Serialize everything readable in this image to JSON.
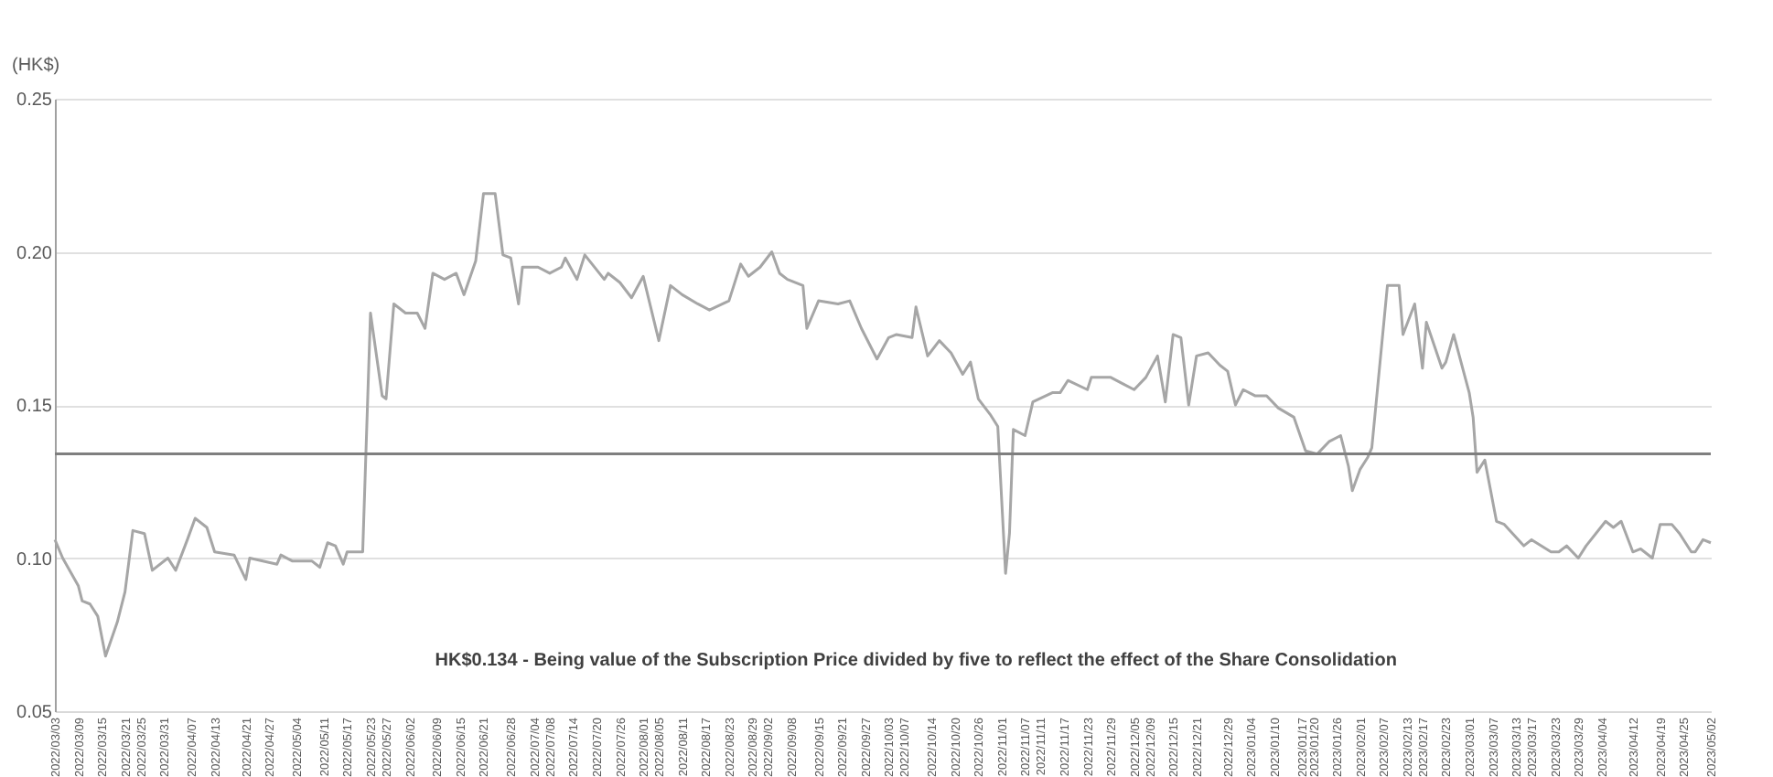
{
  "chart_data": {
    "type": "line",
    "ylabel": "(HK$)",
    "x": [
      "2022-03-03",
      "2022-03-05",
      "2022-03-09",
      "2022-03-10",
      "2022-03-12",
      "2022-03-14",
      "2022-03-16",
      "2022-03-19",
      "2022-03-21",
      "2022-03-23",
      "2022-03-26",
      "2022-03-28",
      "2022-04-01",
      "2022-04-03",
      "2022-04-06",
      "2022-04-08",
      "2022-04-11",
      "2022-04-13",
      "2022-04-18",
      "2022-04-21",
      "2022-04-22",
      "2022-04-29",
      "2022-04-30",
      "2022-05-03",
      "2022-05-08",
      "2022-05-10",
      "2022-05-12",
      "2022-05-14",
      "2022-05-16",
      "2022-05-17",
      "2022-05-21",
      "2022-05-23",
      "2022-05-26",
      "2022-05-27",
      "2022-05-29",
      "2022-06-01",
      "2022-06-04",
      "2022-06-06",
      "2022-06-08",
      "2022-06-11",
      "2022-06-14",
      "2022-06-16",
      "2022-06-19",
      "2022-06-21",
      "2022-06-24",
      "2022-06-26",
      "2022-06-28",
      "2022-06-30",
      "2022-07-01",
      "2022-07-05",
      "2022-07-08",
      "2022-07-11",
      "2022-07-12",
      "2022-07-15",
      "2022-07-17",
      "2022-07-22",
      "2022-07-23",
      "2022-07-26",
      "2022-07-29",
      "2022-08-01",
      "2022-08-05",
      "2022-08-08",
      "2022-08-11",
      "2022-08-15",
      "2022-08-18",
      "2022-08-23",
      "2022-08-26",
      "2022-08-28",
      "2022-08-31",
      "2022-09-03",
      "2022-09-05",
      "2022-09-07",
      "2022-09-11",
      "2022-09-12",
      "2022-09-15",
      "2022-09-20",
      "2022-09-23",
      "2022-09-26",
      "2022-09-30",
      "2022-10-03",
      "2022-10-05",
      "2022-10-09",
      "2022-10-10",
      "2022-10-13",
      "2022-10-16",
      "2022-10-19",
      "2022-10-22",
      "2022-10-24",
      "2022-10-26",
      "2022-10-29",
      "2022-10-31",
      "2022-11-02",
      "2022-11-03",
      "2022-11-04",
      "2022-11-07",
      "2022-11-09",
      "2022-11-14",
      "2022-11-16",
      "2022-11-18",
      "2022-11-23",
      "2022-11-24",
      "2022-11-29",
      "2022-12-02",
      "2022-12-05",
      "2022-12-08",
      "2022-12-11",
      "2022-12-13",
      "2022-12-15",
      "2022-12-17",
      "2022-12-19",
      "2022-12-21",
      "2022-12-24",
      "2022-12-27",
      "2022-12-29",
      "2022-12-31",
      "2023-01-02",
      "2023-01-05",
      "2023-01-08",
      "2023-01-11",
      "2023-01-15",
      "2023-01-18",
      "2023-01-21",
      "2023-01-24",
      "2023-01-27",
      "2023-01-29",
      "2023-01-30",
      "2023-02-01",
      "2023-02-03",
      "2023-02-04",
      "2023-02-08",
      "2023-02-11",
      "2023-02-12",
      "2023-02-15",
      "2023-02-17",
      "2023-02-18",
      "2023-02-22",
      "2023-02-23",
      "2023-02-25",
      "2023-03-01",
      "2023-03-02",
      "2023-03-03",
      "2023-03-05",
      "2023-03-08",
      "2023-03-10",
      "2023-03-15",
      "2023-03-17",
      "2023-03-22",
      "2023-03-24",
      "2023-03-26",
      "2023-03-29",
      "2023-03-31",
      "2023-04-05",
      "2023-04-07",
      "2023-04-09",
      "2023-04-12",
      "2023-04-14",
      "2023-04-17",
      "2023-04-19",
      "2023-04-22",
      "2023-04-24",
      "2023-04-27",
      "2023-04-28",
      "2023-04-30",
      "2023-05-02"
    ],
    "series": [
      {
        "color": "#a6a6a6",
        "values": [
          0.106,
          0.1,
          0.091,
          0.086,
          0.085,
          0.081,
          0.068,
          0.079,
          0.089,
          0.109,
          0.108,
          0.096,
          0.1,
          0.096,
          0.106,
          0.113,
          0.11,
          0.102,
          0.101,
          0.093,
          0.1,
          0.098,
          0.101,
          0.099,
          0.099,
          0.097,
          0.105,
          0.104,
          0.098,
          0.102,
          0.102,
          0.18,
          0.153,
          0.152,
          0.183,
          0.18,
          0.18,
          0.175,
          0.193,
          0.191,
          0.193,
          0.186,
          0.197,
          0.219,
          0.219,
          0.199,
          0.198,
          0.183,
          0.195,
          0.195,
          0.193,
          0.195,
          0.198,
          0.191,
          0.199,
          0.191,
          0.193,
          0.19,
          0.185,
          0.192,
          0.171,
          0.189,
          0.186,
          0.183,
          0.181,
          0.184,
          0.196,
          0.192,
          0.195,
          0.2,
          0.193,
          0.191,
          0.189,
          0.175,
          0.184,
          0.183,
          0.184,
          0.175,
          0.165,
          0.172,
          0.173,
          0.172,
          0.182,
          0.166,
          0.171,
          0.167,
          0.16,
          0.164,
          0.152,
          0.147,
          0.143,
          0.095,
          0.108,
          0.142,
          0.14,
          0.151,
          0.154,
          0.154,
          0.158,
          0.155,
          0.159,
          0.159,
          0.157,
          0.155,
          0.159,
          0.166,
          0.151,
          0.173,
          0.172,
          0.15,
          0.166,
          0.167,
          0.163,
          0.161,
          0.15,
          0.155,
          0.153,
          0.153,
          0.149,
          0.146,
          0.135,
          0.134,
          0.138,
          0.14,
          0.13,
          0.122,
          0.129,
          0.133,
          0.136,
          0.189,
          0.189,
          0.173,
          0.183,
          0.162,
          0.177,
          0.162,
          0.164,
          0.173,
          0.154,
          0.146,
          0.128,
          0.132,
          0.112,
          0.111,
          0.104,
          0.106,
          0.102,
          0.102,
          0.104,
          0.1,
          0.104,
          0.112,
          0.11,
          0.112,
          0.102,
          0.103,
          0.1,
          0.111,
          0.111,
          0.108,
          0.102,
          0.102,
          0.106,
          0.105
        ]
      }
    ],
    "xlim": [
      "2022-03-03",
      "2023-05-02"
    ],
    "xticks": [
      {
        "value": "2022-03-03",
        "label": "2022/03/03"
      },
      {
        "value": "2022-03-09",
        "label": "2022/03/09"
      },
      {
        "value": "2022-03-15",
        "label": "2022/03/15"
      },
      {
        "value": "2022-03-21",
        "label": "2022/03/21"
      },
      {
        "value": "2022-03-25",
        "label": "2022/03/25"
      },
      {
        "value": "2022-03-31",
        "label": "2022/03/31"
      },
      {
        "value": "2022-04-07",
        "label": "2022/04/07"
      },
      {
        "value": "2022-04-13",
        "label": "2022/04/13"
      },
      {
        "value": "2022-04-21",
        "label": "2022/04/21"
      },
      {
        "value": "2022-04-27",
        "label": "2022/04/27"
      },
      {
        "value": "2022-05-04",
        "label": "2022/05/04"
      },
      {
        "value": "2022-05-11",
        "label": "2022/05/11"
      },
      {
        "value": "2022-05-17",
        "label": "2022/05/17"
      },
      {
        "value": "2022-05-23",
        "label": "2022/05/23"
      },
      {
        "value": "2022-05-27",
        "label": "2022/05/27"
      },
      {
        "value": "2022-06-02",
        "label": "2022/06/02"
      },
      {
        "value": "2022-06-09",
        "label": "2022/06/09"
      },
      {
        "value": "2022-06-15",
        "label": "2022/06/15"
      },
      {
        "value": "2022-06-21",
        "label": "2022/06/21"
      },
      {
        "value": "2022-06-28",
        "label": "2022/06/28"
      },
      {
        "value": "2022-07-04",
        "label": "2022/07/04"
      },
      {
        "value": "2022-07-08",
        "label": "2022/07/08"
      },
      {
        "value": "2022-07-14",
        "label": "2022/07/14"
      },
      {
        "value": "2022-07-20",
        "label": "2022/07/20"
      },
      {
        "value": "2022-07-26",
        "label": "2022/07/26"
      },
      {
        "value": "2022-08-01",
        "label": "2022/08/01"
      },
      {
        "value": "2022-08-05",
        "label": "2022/08/05"
      },
      {
        "value": "2022-08-11",
        "label": "2022/08/11"
      },
      {
        "value": "2022-08-17",
        "label": "2022/08/17"
      },
      {
        "value": "2022-08-23",
        "label": "2022/08/23"
      },
      {
        "value": "2022-08-29",
        "label": "2022/08/29"
      },
      {
        "value": "2022-09-02",
        "label": "2022/09/02"
      },
      {
        "value": "2022-09-08",
        "label": "2022/09/08"
      },
      {
        "value": "2022-09-15",
        "label": "2022/09/15"
      },
      {
        "value": "2022-09-21",
        "label": "2022/09/21"
      },
      {
        "value": "2022-09-27",
        "label": "2022/09/27"
      },
      {
        "value": "2022-10-03",
        "label": "2022/10/03"
      },
      {
        "value": "2022-10-07",
        "label": "2022/10/07"
      },
      {
        "value": "2022-10-14",
        "label": "2022/10/14"
      },
      {
        "value": "2022-10-20",
        "label": "2022/10/20"
      },
      {
        "value": "2022-10-26",
        "label": "2022/10/26"
      },
      {
        "value": "2022-11-01",
        "label": "2022/11/01"
      },
      {
        "value": "2022-11-07",
        "label": "2022/11/07"
      },
      {
        "value": "2022-11-11",
        "label": "2022/11/11"
      },
      {
        "value": "2022-11-17",
        "label": "2022/11/17"
      },
      {
        "value": "2022-11-23",
        "label": "2022/11/23"
      },
      {
        "value": "2022-11-29",
        "label": "2022/11/29"
      },
      {
        "value": "2022-12-05",
        "label": "2022/12/05"
      },
      {
        "value": "2022-12-09",
        "label": "2022/12/09"
      },
      {
        "value": "2022-12-15",
        "label": "2022/12/15"
      },
      {
        "value": "2022-12-21",
        "label": "2022/12/21"
      },
      {
        "value": "2022-12-29",
        "label": "2022/12/29"
      },
      {
        "value": "2023-01-04",
        "label": "2023/01/04"
      },
      {
        "value": "2023-01-10",
        "label": "2023/01/10"
      },
      {
        "value": "2023-01-17",
        "label": "2023/01/17"
      },
      {
        "value": "2023-01-20",
        "label": "2023/01/20"
      },
      {
        "value": "2023-01-26",
        "label": "2023/01/26"
      },
      {
        "value": "2023-02-01",
        "label": "2023/02/01"
      },
      {
        "value": "2023-02-07",
        "label": "2023/02/07"
      },
      {
        "value": "2023-02-13",
        "label": "2023/02/13"
      },
      {
        "value": "2023-02-17",
        "label": "2023/02/17"
      },
      {
        "value": "2023-02-23",
        "label": "2023/02/23"
      },
      {
        "value": "2023-03-01",
        "label": "2023/03/01"
      },
      {
        "value": "2023-03-07",
        "label": "2023/03/07"
      },
      {
        "value": "2023-03-13",
        "label": "2023/03/13"
      },
      {
        "value": "2023-03-17",
        "label": "2023/03/17"
      },
      {
        "value": "2023-03-23",
        "label": "2023/03/23"
      },
      {
        "value": "2023-03-29",
        "label": "2023/03/29"
      },
      {
        "value": "2023-04-04",
        "label": "2023/04/04"
      },
      {
        "value": "2023-04-12",
        "label": "2023/04/12"
      },
      {
        "value": "2023-04-19",
        "label": "2023/04/19"
      },
      {
        "value": "2023-04-25",
        "label": "2023/04/25"
      },
      {
        "value": "2023-05-02",
        "label": "2023/05/02"
      }
    ],
    "ylim": [
      0.05,
      0.25
    ],
    "yticks": [
      {
        "value": 0.05,
        "label": "0.05"
      },
      {
        "value": 0.1,
        "label": "0.10"
      },
      {
        "value": 0.15,
        "label": "0.15"
      },
      {
        "value": 0.2,
        "label": "0.20"
      },
      {
        "value": 0.25,
        "label": "0.25"
      }
    ],
    "grid": "y",
    "annotations": [
      "HK$0.134 - Being value of the Subscription Price divided by five to reflect the effect of the Share Consolidation"
    ],
    "ref_lines": [
      {
        "axis": "y",
        "value": 0.134,
        "color": "#7f7f7f"
      }
    ]
  }
}
